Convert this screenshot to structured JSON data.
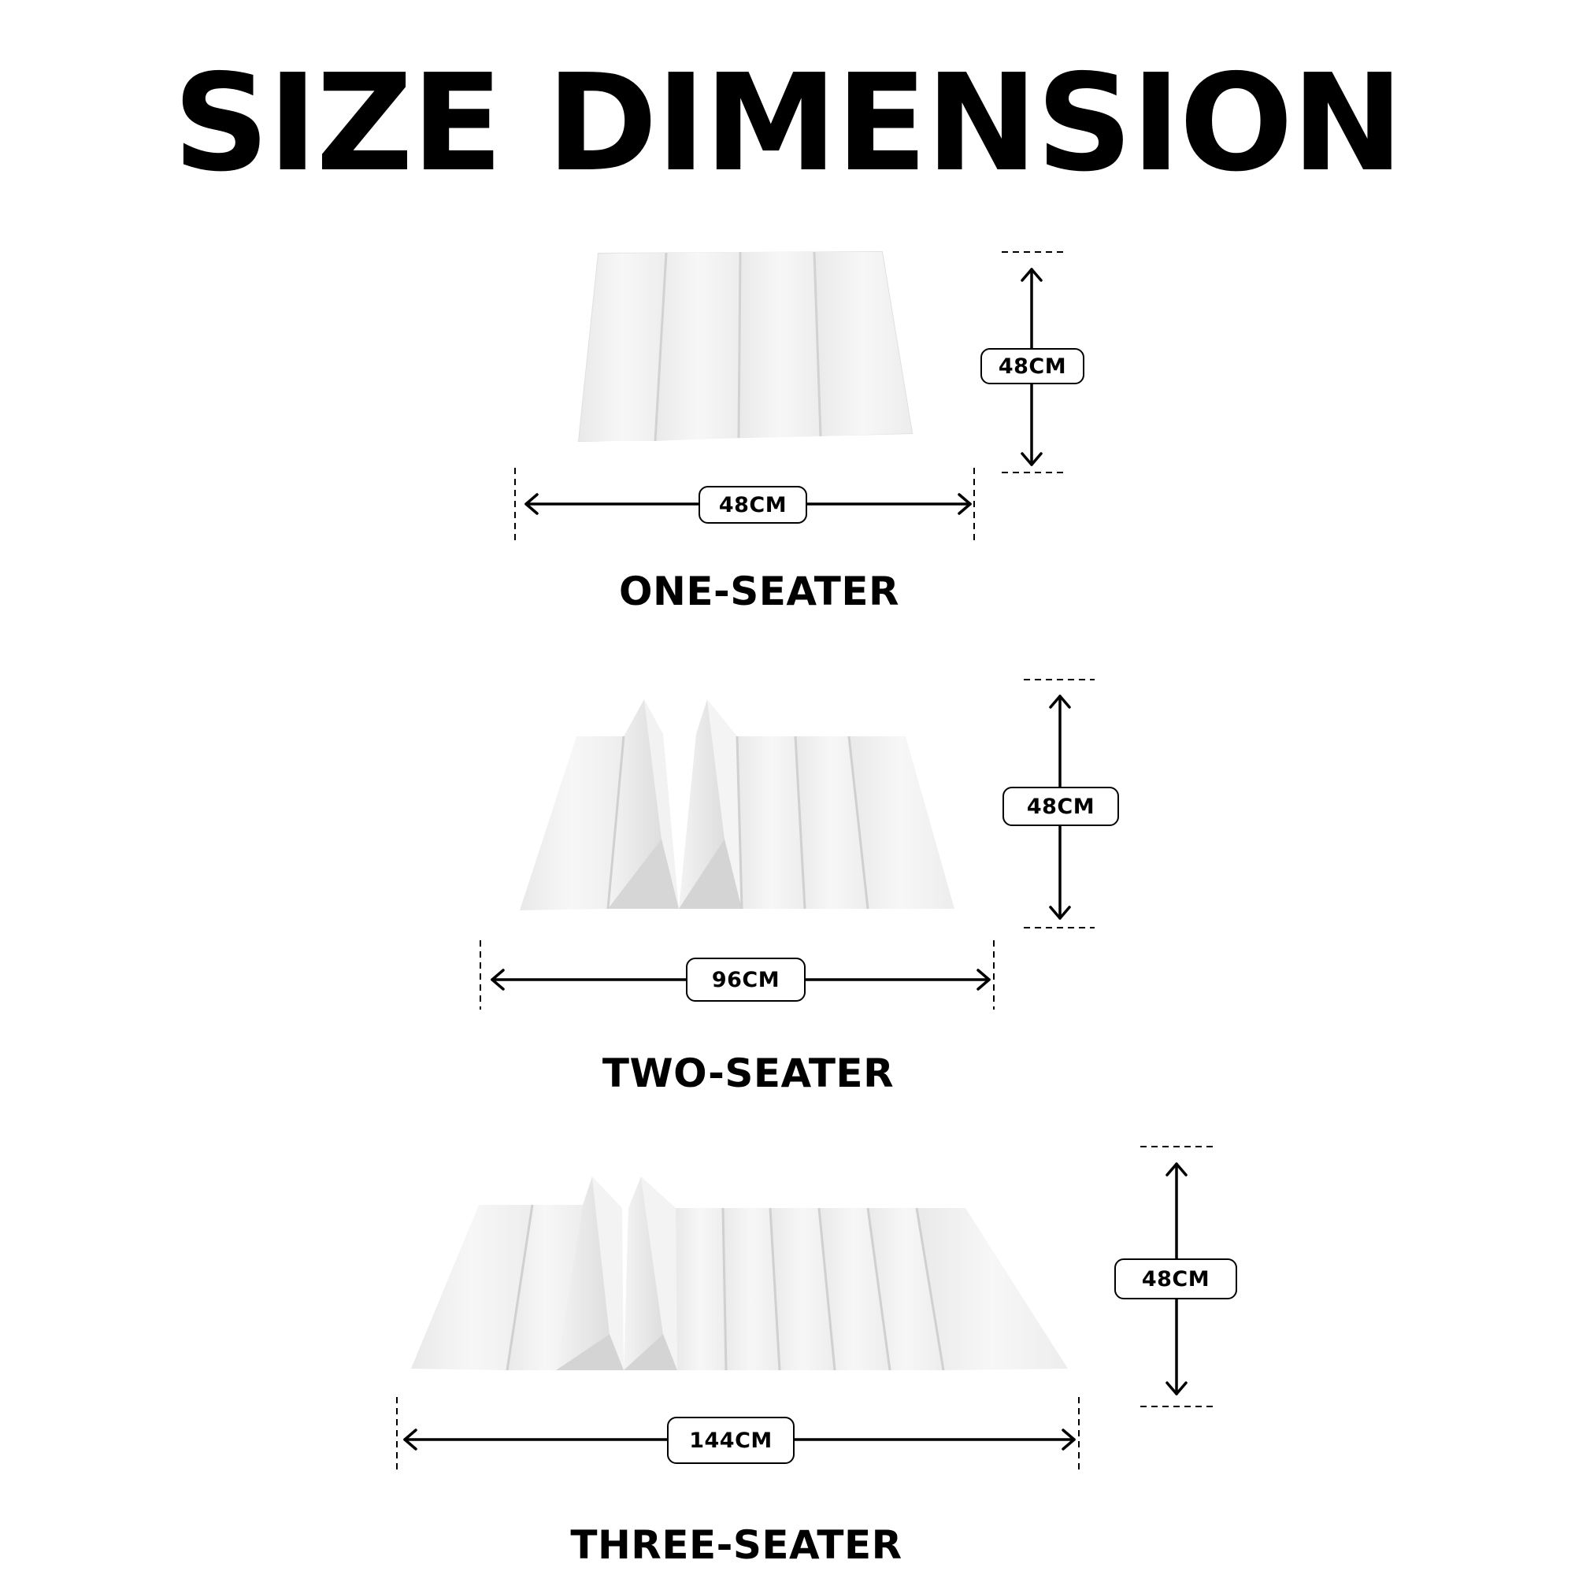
{
  "title": "SIZE DIMENSION",
  "variants": [
    {
      "name": "ONE-SEATER",
      "width_label": "48CM",
      "height_label": "48CM"
    },
    {
      "name": "TWO-SEATER",
      "width_label": "96CM",
      "height_label": "48CM"
    },
    {
      "name": "THREE-SEATER",
      "width_label": "144CM",
      "height_label": "48CM"
    }
  ]
}
